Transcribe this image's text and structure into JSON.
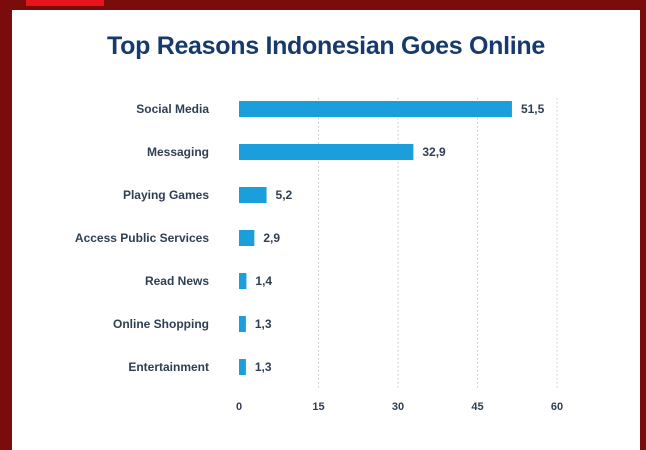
{
  "colors": {
    "frame": "#7a0c0c",
    "accent": "#e8141c",
    "bar": "#1a9fdc",
    "title": "#163a6b",
    "text": "#2f3f52",
    "grid": "#bfc6cc"
  },
  "chart_data": {
    "type": "bar",
    "orientation": "horizontal",
    "title": "Top Reasons Indonesian Goes Online",
    "xlabel": "",
    "ylabel": "",
    "categories": [
      "Social Media",
      "Messaging",
      "Playing Games",
      "Access Public Services",
      "Read News",
      "Online Shopping",
      "Entertainment"
    ],
    "values": [
      51.5,
      32.9,
      5.2,
      2.9,
      1.4,
      1.3,
      1.3
    ],
    "value_labels": [
      "51,5",
      "32,9",
      "5,2",
      "2,9",
      "1,4",
      "1,3",
      "1,3"
    ],
    "xlim": [
      0,
      60
    ],
    "xticks": [
      0,
      15,
      30,
      45,
      60
    ],
    "xtick_labels": [
      "0",
      "15",
      "30",
      "45",
      "60"
    ],
    "grid": "vertical dotted"
  }
}
